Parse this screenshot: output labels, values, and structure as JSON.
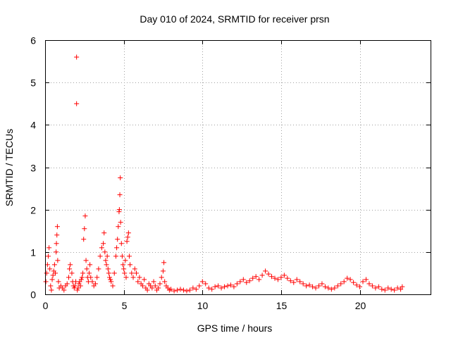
{
  "chart_data": {
    "type": "scatter",
    "title": "Day 010 of 2024, SRMTID for receiver prsn",
    "xlabel": "GPS time / hours",
    "ylabel": "SRMTID / TECUs",
    "xlim": [
      0,
      24.5
    ],
    "ylim": [
      0,
      6
    ],
    "xticks": [
      0,
      5,
      10,
      15,
      20
    ],
    "yticks": [
      0,
      1,
      2,
      3,
      4,
      5,
      6
    ],
    "xtick_labels": [
      "0",
      "5",
      "10",
      "15",
      "20"
    ],
    "ytick_labels": [
      "0",
      "1",
      "2",
      "3",
      "4",
      "5",
      "6"
    ],
    "grid": true,
    "marker": "+",
    "colors": {
      "series": "#ff0000",
      "grid": "#a0a0a0",
      "axis": "#000000"
    },
    "series": [
      {
        "name": "SRMTID",
        "x": [
          0.05,
          0.1,
          0.15,
          0.2,
          0.25,
          0.3,
          0.35,
          0.4,
          0.45,
          0.5,
          0.55,
          0.6,
          0.65,
          0.7,
          0.72,
          0.75,
          0.78,
          0.8,
          0.85,
          0.9,
          1.0,
          1.1,
          1.2,
          1.3,
          1.4,
          1.5,
          1.55,
          1.6,
          1.7,
          1.75,
          1.8,
          1.85,
          1.9,
          1.95,
          2.0,
          2.0,
          2.05,
          2.1,
          2.15,
          2.2,
          2.25,
          2.3,
          2.35,
          2.4,
          2.45,
          2.5,
          2.55,
          2.6,
          2.65,
          2.7,
          2.75,
          2.8,
          2.85,
          2.9,
          3.0,
          3.1,
          3.2,
          3.3,
          3.4,
          3.5,
          3.6,
          3.7,
          3.75,
          3.8,
          3.85,
          3.9,
          3.95,
          4.0,
          4.05,
          4.1,
          4.15,
          4.2,
          4.3,
          4.4,
          4.5,
          4.55,
          4.6,
          4.65,
          4.7,
          4.72,
          4.75,
          4.78,
          4.8,
          4.85,
          4.9,
          4.95,
          5.0,
          5.05,
          5.1,
          5.15,
          5.2,
          5.25,
          5.3,
          5.35,
          5.4,
          5.5,
          5.6,
          5.7,
          5.8,
          5.9,
          6.0,
          6.1,
          6.2,
          6.3,
          6.4,
          6.5,
          6.6,
          6.7,
          6.8,
          6.9,
          7.0,
          7.1,
          7.2,
          7.3,
          7.4,
          7.5,
          7.55,
          7.6,
          7.7,
          7.8,
          7.9,
          8.0,
          8.2,
          8.4,
          8.6,
          8.8,
          9.0,
          9.2,
          9.4,
          9.6,
          9.8,
          10.0,
          10.2,
          10.4,
          10.6,
          10.8,
          11.0,
          11.2,
          11.4,
          11.6,
          11.8,
          12.0,
          12.2,
          12.4,
          12.6,
          12.8,
          13.0,
          13.2,
          13.4,
          13.6,
          13.8,
          14.0,
          14.2,
          14.4,
          14.6,
          14.8,
          15.0,
          15.2,
          15.4,
          15.6,
          15.8,
          16.0,
          16.2,
          16.4,
          16.6,
          16.8,
          17.0,
          17.2,
          17.4,
          17.6,
          17.8,
          18.0,
          18.2,
          18.4,
          18.6,
          18.8,
          19.0,
          19.2,
          19.4,
          19.6,
          19.8,
          20.0,
          20.2,
          20.4,
          20.6,
          20.8,
          21.0,
          21.2,
          21.4,
          21.6,
          21.8,
          22.0,
          22.2,
          22.4,
          22.6,
          22.7
        ],
        "y": [
          0.3,
          0.5,
          0.7,
          0.9,
          1.1,
          0.6,
          0.2,
          0.1,
          0.35,
          0.45,
          0.55,
          0.7,
          0.5,
          1.0,
          1.2,
          1.4,
          1.6,
          0.8,
          0.3,
          0.15,
          0.2,
          0.15,
          0.1,
          0.2,
          0.25,
          0.4,
          0.6,
          0.7,
          0.5,
          0.3,
          0.2,
          0.15,
          0.2,
          0.3,
          4.5,
          5.6,
          0.1,
          0.15,
          0.25,
          0.3,
          0.2,
          0.35,
          0.4,
          0.5,
          1.3,
          1.55,
          1.85,
          0.8,
          0.6,
          0.4,
          0.3,
          0.5,
          0.7,
          0.4,
          0.3,
          0.2,
          0.25,
          0.4,
          0.6,
          0.9,
          1.1,
          1.2,
          1.45,
          1.0,
          0.8,
          0.7,
          0.9,
          0.6,
          0.5,
          0.4,
          0.35,
          0.3,
          0.2,
          0.5,
          0.9,
          1.1,
          1.3,
          1.6,
          1.95,
          2.0,
          2.35,
          2.75,
          1.7,
          1.2,
          0.9,
          0.7,
          0.6,
          0.5,
          0.8,
          0.4,
          1.25,
          1.35,
          1.45,
          0.9,
          0.7,
          0.5,
          0.4,
          0.6,
          0.5,
          0.3,
          0.4,
          0.25,
          0.2,
          0.35,
          0.15,
          0.1,
          0.25,
          0.2,
          0.15,
          0.3,
          0.2,
          0.1,
          0.15,
          0.25,
          0.4,
          0.55,
          0.75,
          0.3,
          0.2,
          0.15,
          0.1,
          0.12,
          0.08,
          0.1,
          0.12,
          0.1,
          0.08,
          0.1,
          0.15,
          0.12,
          0.2,
          0.3,
          0.25,
          0.15,
          0.12,
          0.18,
          0.2,
          0.15,
          0.18,
          0.2,
          0.22,
          0.18,
          0.25,
          0.3,
          0.35,
          0.28,
          0.32,
          0.38,
          0.42,
          0.35,
          0.45,
          0.55,
          0.48,
          0.42,
          0.38,
          0.35,
          0.4,
          0.45,
          0.38,
          0.32,
          0.28,
          0.35,
          0.3,
          0.25,
          0.2,
          0.22,
          0.18,
          0.15,
          0.2,
          0.25,
          0.18,
          0.15,
          0.12,
          0.15,
          0.2,
          0.25,
          0.3,
          0.38,
          0.35,
          0.28,
          0.22,
          0.18,
          0.3,
          0.35,
          0.25,
          0.2,
          0.15,
          0.18,
          0.12,
          0.1,
          0.15,
          0.12,
          0.1,
          0.15,
          0.12,
          0.18
        ]
      }
    ]
  }
}
